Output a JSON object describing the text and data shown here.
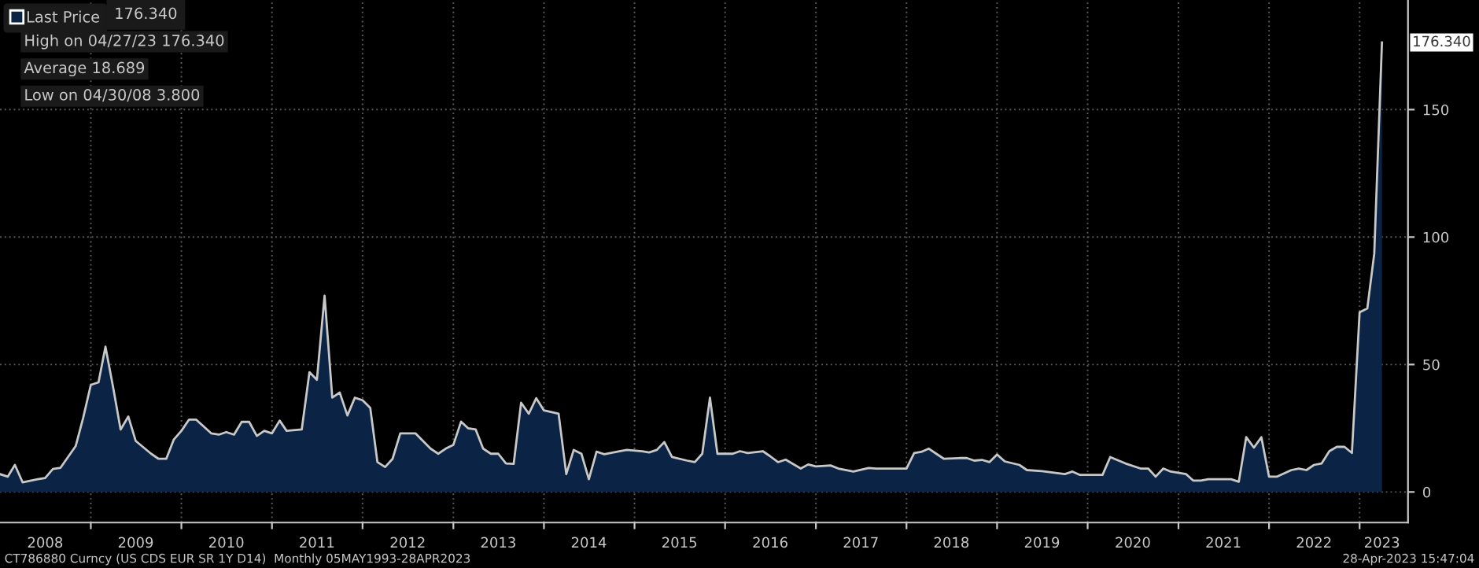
{
  "chart_data": {
    "type": "area",
    "x": [
      "2008-01",
      "2008-02",
      "2008-03",
      "2008-04",
      "2008-06",
      "2008-07",
      "2008-08",
      "2008-09",
      "2008-11",
      "2008-12",
      "2009-01",
      "2009-02",
      "2009-03",
      "2009-04",
      "2009-05",
      "2009-06",
      "2009-07",
      "2009-09",
      "2009-10",
      "2009-11",
      "2009-12",
      "2010-01",
      "2010-02",
      "2010-03",
      "2010-05",
      "2010-06",
      "2010-07",
      "2010-08",
      "2010-09",
      "2010-10",
      "2010-11",
      "2010-12",
      "2011-01",
      "2011-02",
      "2011-03",
      "2011-05",
      "2011-06",
      "2011-07",
      "2011-08",
      "2011-09",
      "2011-10",
      "2011-11",
      "2011-12",
      "2012-01",
      "2012-02",
      "2012-03",
      "2012-04",
      "2012-05",
      "2012-06",
      "2012-08",
      "2012-10",
      "2012-11",
      "2012-12",
      "2013-01",
      "2013-02",
      "2013-03",
      "2013-04",
      "2013-05",
      "2013-06",
      "2013-07",
      "2013-08",
      "2013-09",
      "2013-10",
      "2013-11",
      "2013-12",
      "2014-01",
      "2014-03",
      "2014-04",
      "2014-05",
      "2014-06",
      "2014-07",
      "2014-08",
      "2014-09",
      "2014-11",
      "2014-12",
      "2015-02",
      "2015-03",
      "2015-04",
      "2015-05",
      "2015-06",
      "2015-08",
      "2015-09",
      "2015-10",
      "2015-11",
      "2015-12",
      "2016-02",
      "2016-03",
      "2016-04",
      "2016-06",
      "2016-07",
      "2016-08",
      "2016-09",
      "2016-11",
      "2016-12",
      "2017-01",
      "2017-03",
      "2017-04",
      "2017-06",
      "2017-08",
      "2017-09",
      "2018-01",
      "2018-02",
      "2018-03",
      "2018-04",
      "2018-05",
      "2018-06",
      "2018-08",
      "2018-09",
      "2018-10",
      "2018-11",
      "2018-12",
      "2019-01",
      "2019-02",
      "2019-04",
      "2019-05",
      "2019-07",
      "2019-10",
      "2019-11",
      "2019-12",
      "2020-03",
      "2020-04",
      "2020-06",
      "2020-08",
      "2020-09",
      "2020-10",
      "2020-11",
      "2020-12",
      "2021-02",
      "2021-03",
      "2021-04",
      "2021-05",
      "2021-08",
      "2021-09",
      "2021-10",
      "2021-11",
      "2021-12",
      "2022-01",
      "2022-02",
      "2022-04",
      "2022-05",
      "2022-06",
      "2022-07",
      "2022-08",
      "2022-09",
      "2022-10",
      "2022-11",
      "2022-12",
      "2023-01",
      "2023-02",
      "2023-03",
      "2023-04"
    ],
    "series": [
      {
        "name": "Last Price",
        "color": "#0b2344",
        "values": [
          7,
          6,
          10.6,
          3.8,
          5,
          5.5,
          9,
          9.5,
          18,
          29,
          42,
          43,
          57,
          41,
          24.5,
          29.6,
          20,
          15,
          13,
          13,
          20.5,
          24,
          28.4,
          28.4,
          23,
          22.5,
          23.5,
          22.5,
          27.5,
          27.5,
          22,
          24,
          23,
          28,
          24,
          24.5,
          47,
          44,
          77,
          37,
          39,
          30,
          37,
          36,
          33,
          11.7,
          9.8,
          13,
          23,
          23,
          17,
          15,
          17,
          18.5,
          27.6,
          25,
          24.5,
          17,
          15,
          15,
          11.2,
          11,
          35,
          30.7,
          36.8,
          32,
          30.7,
          7,
          16.5,
          15,
          5,
          15.8,
          14.8,
          16,
          16.5,
          16,
          15.5,
          16.5,
          19.6,
          13.7,
          12.3,
          11.7,
          15,
          37,
          15,
          15,
          16,
          15.3,
          16,
          14,
          11.7,
          12.7,
          9.2,
          10.8,
          10,
          10.4,
          9.2,
          8,
          9.4,
          9.2,
          9.2,
          15.3,
          15.7,
          17,
          15,
          13,
          13.3,
          13.3,
          12.3,
          12.6,
          11.7,
          14.7,
          12,
          10.6,
          8.6,
          8.2,
          7,
          8,
          6.7,
          6.7,
          13.7,
          11.2,
          9.2,
          9.2,
          6,
          9.2,
          8,
          7,
          4.5,
          4.5,
          5,
          5,
          4,
          21.5,
          17.4,
          21.5,
          6,
          6,
          8.6,
          9.2,
          8.6,
          10.6,
          11.2,
          16,
          17.7,
          17.7,
          15.3,
          70.5,
          72,
          93.5,
          176.34
        ]
      }
    ],
    "ylim": [
      -12,
      193
    ],
    "yticks": [
      0,
      50,
      100,
      150
    ],
    "xlim": [
      "2008-01-01",
      "2023-07-15"
    ],
    "xticks": [
      {
        "value": "2008-07-01",
        "label": "2008"
      },
      {
        "value": "2009-01-01",
        "label": null
      },
      {
        "value": "2009-07-01",
        "label": "2009"
      },
      {
        "value": "2010-01-01",
        "label": null
      },
      {
        "value": "2010-07-01",
        "label": "2010"
      },
      {
        "value": "2011-01-01",
        "label": null
      },
      {
        "value": "2011-07-01",
        "label": "2011"
      },
      {
        "value": "2012-01-01",
        "label": null
      },
      {
        "value": "2012-07-01",
        "label": "2012"
      },
      {
        "value": "2013-01-01",
        "label": null
      },
      {
        "value": "2013-07-01",
        "label": "2013"
      },
      {
        "value": "2014-01-01",
        "label": null
      },
      {
        "value": "2014-07-01",
        "label": "2014"
      },
      {
        "value": "2015-01-01",
        "label": null
      },
      {
        "value": "2015-07-01",
        "label": "2015"
      },
      {
        "value": "2016-01-01",
        "label": null
      },
      {
        "value": "2016-07-01",
        "label": "2016"
      },
      {
        "value": "2017-01-01",
        "label": null
      },
      {
        "value": "2017-07-01",
        "label": "2017"
      },
      {
        "value": "2018-01-01",
        "label": null
      },
      {
        "value": "2018-07-01",
        "label": "2018"
      },
      {
        "value": "2019-01-01",
        "label": null
      },
      {
        "value": "2019-07-01",
        "label": "2019"
      },
      {
        "value": "2020-01-01",
        "label": null
      },
      {
        "value": "2020-07-01",
        "label": "2020"
      },
      {
        "value": "2021-01-01",
        "label": null
      },
      {
        "value": "2021-07-01",
        "label": "2021"
      },
      {
        "value": "2022-01-01",
        "label": null
      },
      {
        "value": "2022-07-01",
        "label": "2022"
      },
      {
        "value": "2023-01-01",
        "label": null
      },
      {
        "value": "2023-04-01",
        "label": "2023"
      }
    ],
    "grid": true,
    "legend": "top left",
    "annotations": [
      "176.340",
      "High on 04/27/23 176.340",
      "Average 18.689",
      "Low on 04/30/08 3.800",
      {
        "text": "176.340",
        "x": "2023-04",
        "y": 176.34
      },
      "CT786880 Curncy (US CDS EUR SR 1Y D14)  Monthly 05MAY1993-28APR2023",
      "28-Apr-2023 15:47:04"
    ]
  }
}
